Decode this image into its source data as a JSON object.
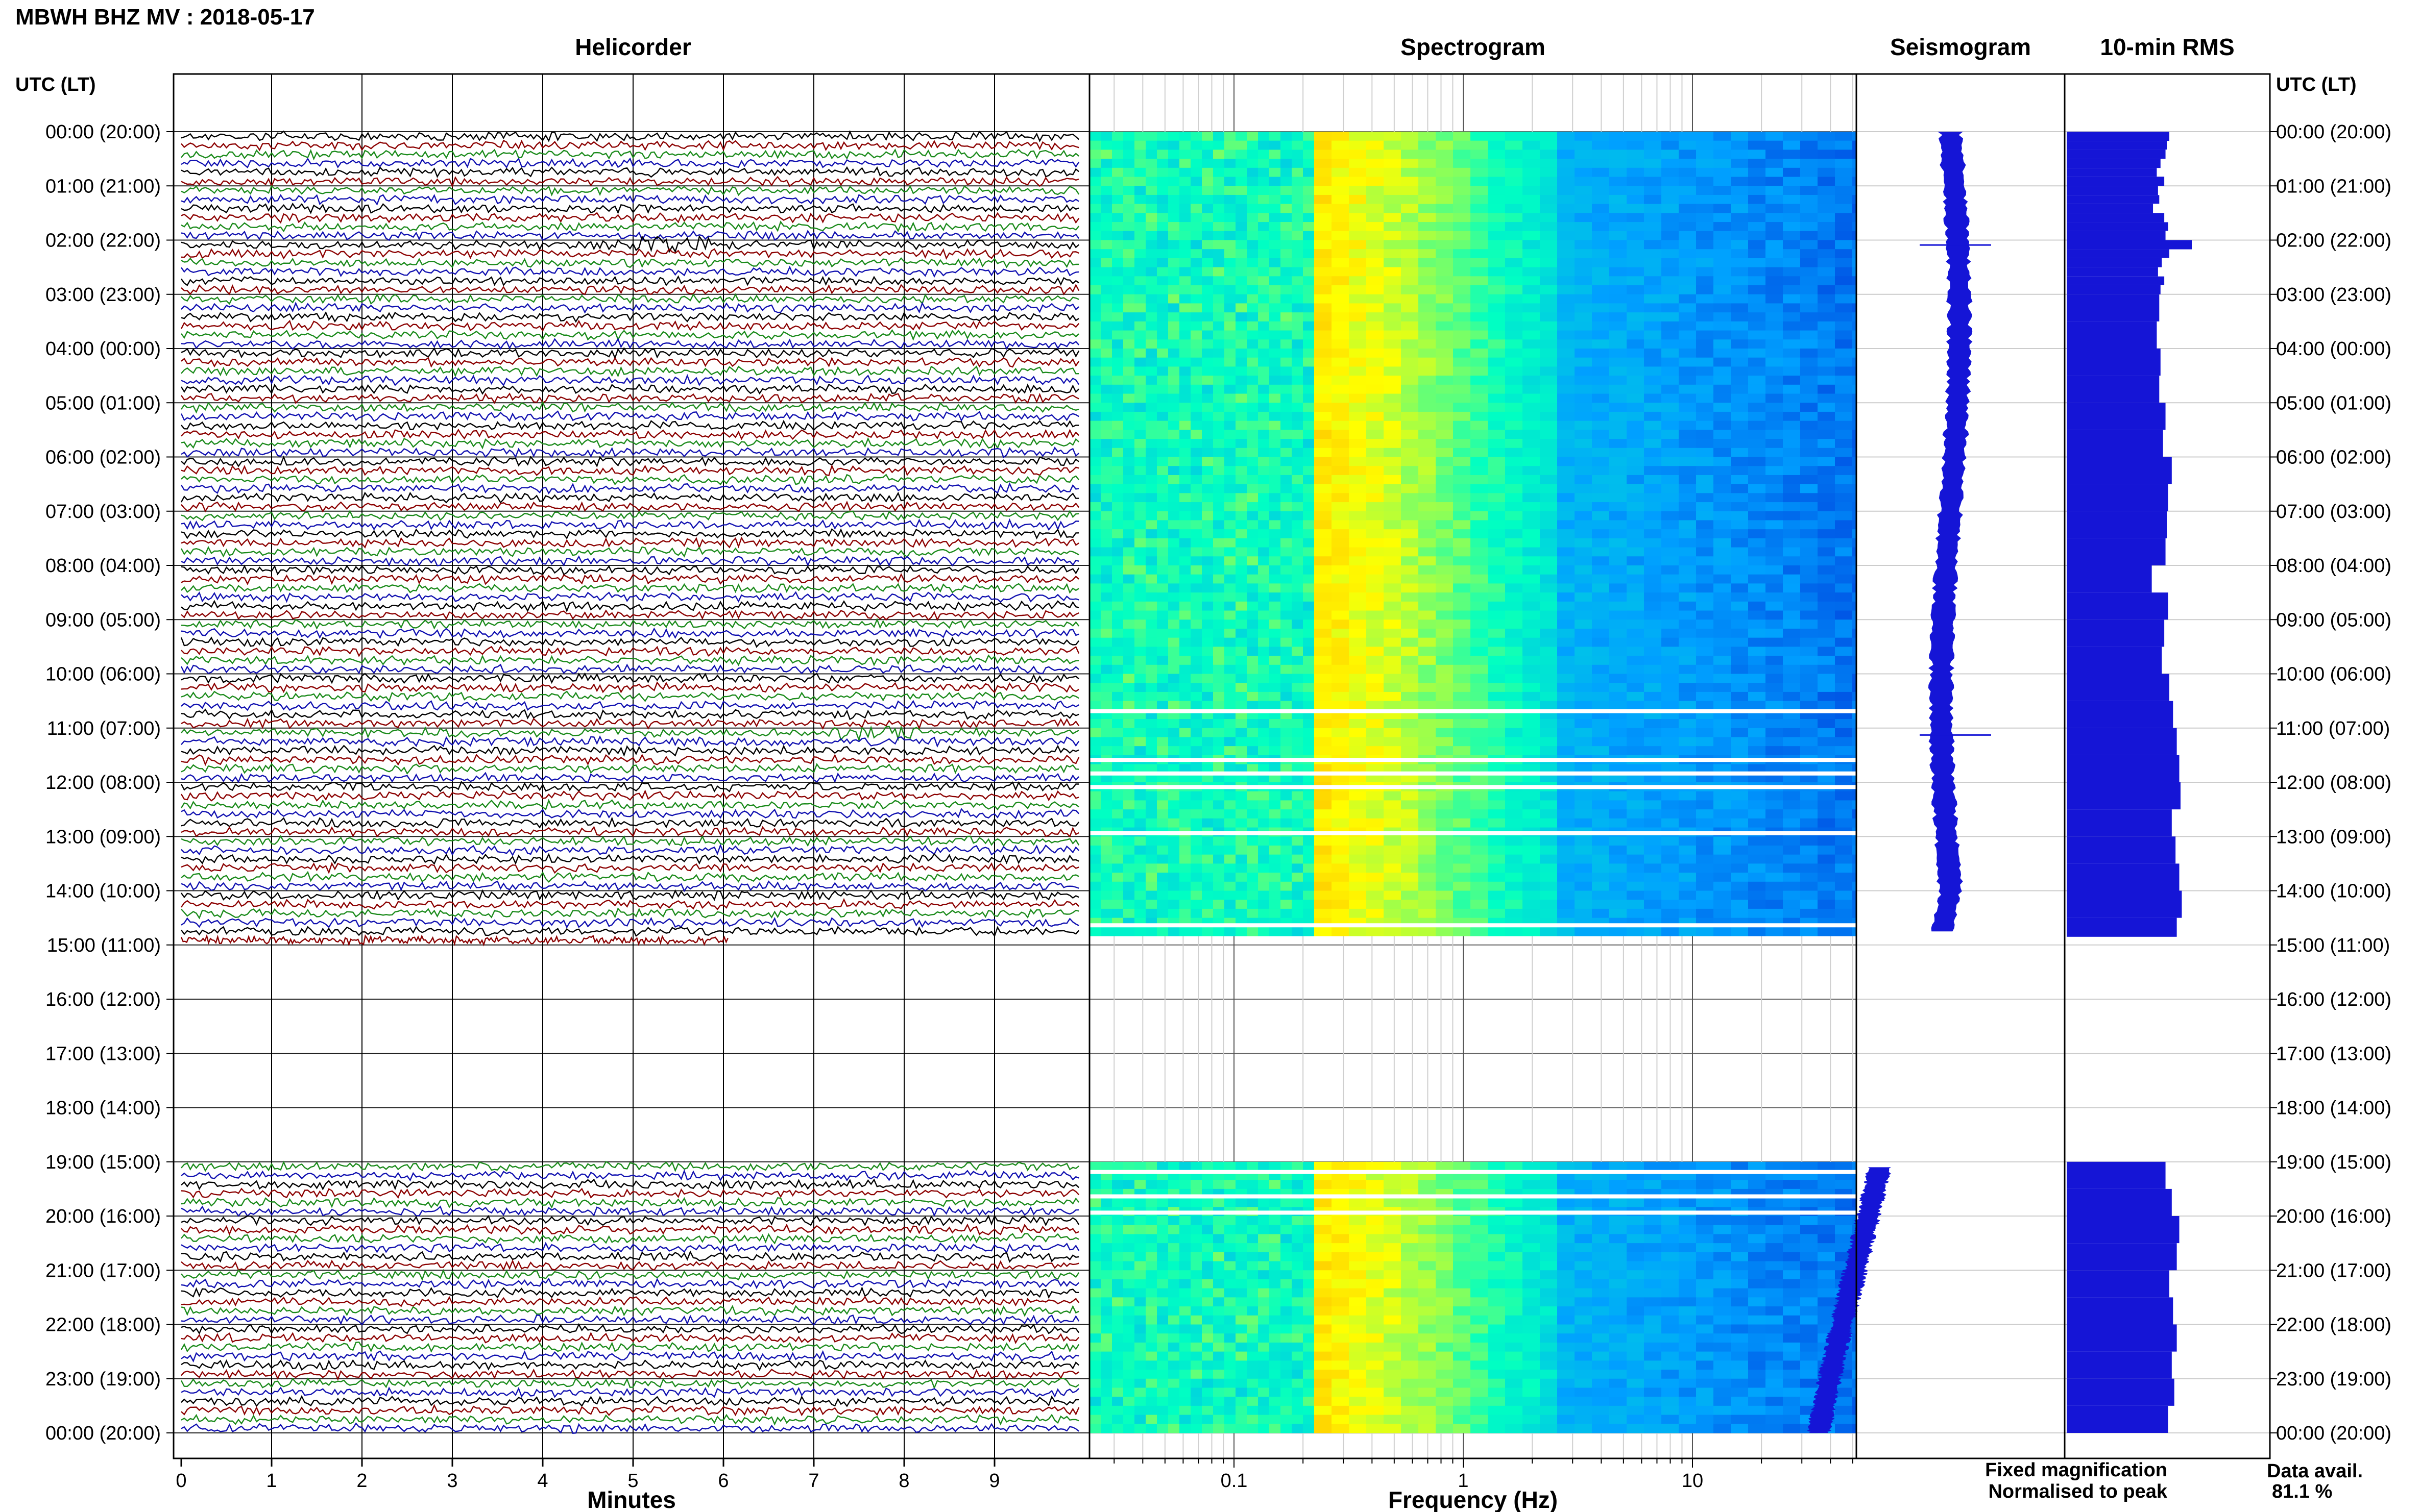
{
  "header": {
    "title": "MBWH BHZ MV : 2018-05-17",
    "utc_left": "UTC (LT)",
    "utc_right": "UTC (LT)"
  },
  "panels": {
    "helicorder": "Helicorder",
    "spectrogram": "Spectrogram",
    "seismogram": "Seismogram",
    "rms": "10-min RMS"
  },
  "axes": {
    "minutes_label": "Minutes",
    "minutes_ticks": [
      "0",
      "1",
      "2",
      "3",
      "4",
      "5",
      "6",
      "7",
      "8",
      "9"
    ],
    "frequency_label": "Frequency (Hz)",
    "frequency_ticks": [
      "0.1",
      "1",
      "10"
    ]
  },
  "time_labels": [
    "00:00 (20:00)",
    "01:00 (21:00)",
    "02:00 (22:00)",
    "03:00 (23:00)",
    "04:00 (00:00)",
    "05:00 (01:00)",
    "06:00 (02:00)",
    "07:00 (03:00)",
    "08:00 (04:00)",
    "09:00 (05:00)",
    "10:00 (06:00)",
    "11:00 (07:00)",
    "12:00 (08:00)",
    "13:00 (09:00)",
    "14:00 (10:00)",
    "15:00 (11:00)",
    "16:00 (12:00)",
    "17:00 (13:00)",
    "18:00 (14:00)",
    "19:00 (15:00)",
    "20:00 (16:00)",
    "21:00 (17:00)",
    "22:00 (18:00)",
    "23:00 (19:00)",
    "00:00 (20:00)"
  ],
  "legend": {
    "fixed": "Fixed magnification",
    "normalised": "Normalised to peak",
    "avail_label": "Data avail.",
    "avail_value": "81.1 %",
    "color_fixed": "#1515d6",
    "color_normalised": "#e01010"
  },
  "chart_data": {
    "type": "helicorder",
    "station": "MBWH BHZ MV",
    "date": "2018-05-17",
    "data_availability_percent": 81.1,
    "trace_colors": [
      "#000000",
      "#8b0000",
      "#1a8a1a",
      "#1010b0"
    ],
    "gap_hours_utc": [
      14.75,
      19.0
    ],
    "events_utc": [
      {
        "hour": 2,
        "minute": 5.4
      },
      {
        "hour": 11,
        "minute": 7.7
      }
    ],
    "frequency_range_hz": [
      0.025,
      50
    ],
    "rms_10min": {
      "hours": [
        0,
        0.17,
        0.33,
        0.5,
        0.67,
        0.83,
        1,
        1.17,
        1.33,
        1.5,
        1.67,
        1.83,
        2,
        2.17,
        2.33,
        2.5,
        2.67,
        2.83,
        3,
        3.5,
        4,
        4.5,
        5,
        5.5,
        6,
        6.5,
        7,
        7.5,
        8,
        8.5,
        9,
        9.5,
        10,
        10.5,
        11,
        11.5,
        12,
        12.5,
        13,
        13.5,
        14,
        14.5,
        19,
        19.5,
        20,
        20.5,
        21,
        21.5,
        22,
        22.5,
        23,
        23.5
      ],
      "values": [
        0.82,
        0.8,
        0.79,
        0.75,
        0.72,
        0.78,
        0.73,
        0.74,
        0.69,
        0.78,
        0.81,
        0.79,
        1.0,
        0.82,
        0.76,
        0.73,
        0.78,
        0.75,
        0.74,
        0.72,
        0.75,
        0.74,
        0.79,
        0.77,
        0.84,
        0.81,
        0.8,
        0.79,
        0.68,
        0.81,
        0.78,
        0.76,
        0.82,
        0.85,
        0.88,
        0.9,
        0.91,
        0.84,
        0.87,
        0.9,
        0.92,
        0.88,
        0.79,
        0.84,
        0.9,
        0.88,
        0.82,
        0.85,
        0.88,
        0.84,
        0.86,
        0.81
      ]
    }
  }
}
